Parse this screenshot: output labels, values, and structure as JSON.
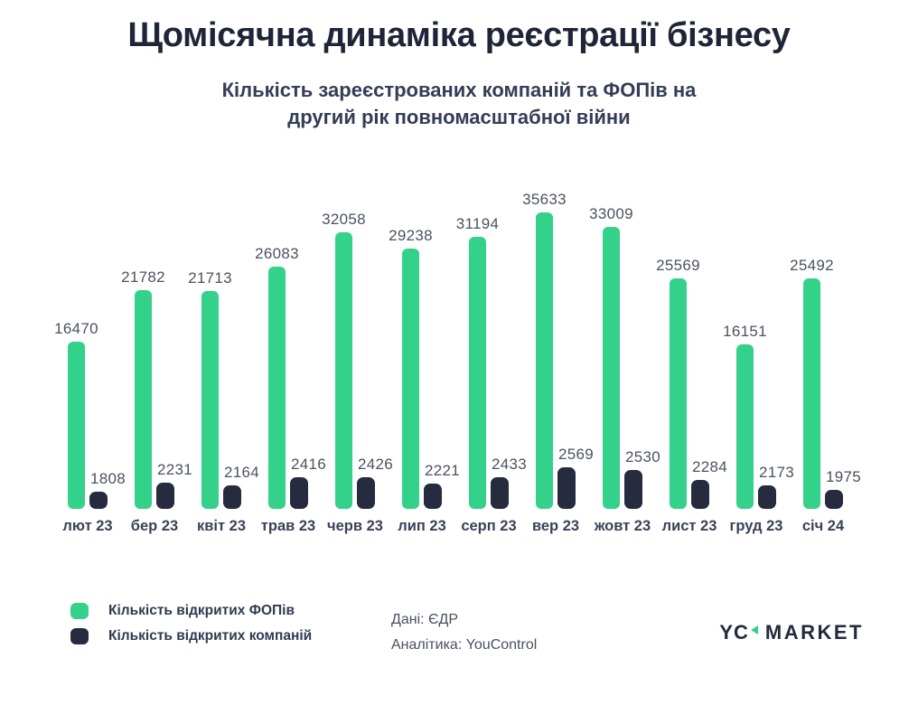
{
  "page": {
    "title": "Щомісячна динаміка реєстрації бізнесу",
    "subtitle_line1": "Кількість зареєстрованих компаній та ФОПів на",
    "subtitle_line2": "другий рік повномасштабної війни"
  },
  "chart_data": {
    "type": "bar",
    "title": "Щомісячна динаміка реєстрації бізнесу",
    "subtitle": "Кількість зареєстрованих компаній та ФОПів на другий рік повномасштабної війни",
    "categories": [
      "лют 23",
      "бер 23",
      "квіт 23",
      "трав 23",
      "черв 23",
      "лип 23",
      "серп 23",
      "вер 23",
      "жовт 23",
      "лист 23",
      "груд 23",
      "січ 24"
    ],
    "series": [
      {
        "name": "Кількість відкритих ФОПів",
        "color": "#34d18a",
        "values": [
          16470,
          21782,
          21713,
          26083,
          32058,
          29238,
          31194,
          35633,
          33009,
          25569,
          16151,
          25492
        ]
      },
      {
        "name": "Кількість відкритих компаній",
        "color": "#262b40",
        "values": [
          1808,
          2231,
          2164,
          2416,
          2426,
          2221,
          2433,
          2569,
          2530,
          2284,
          2173,
          1975
        ]
      }
    ],
    "value_labels_visible": true,
    "axes_visible": false,
    "grid": false,
    "legend_position": "bottom-left"
  },
  "footer": {
    "source_line1": "Дані: ЄДР",
    "source_line2": "Аналітика: YouControl",
    "logo": {
      "text_left": "YC",
      "text_right": "MARKET",
      "accent_color": "#34d18a"
    }
  }
}
